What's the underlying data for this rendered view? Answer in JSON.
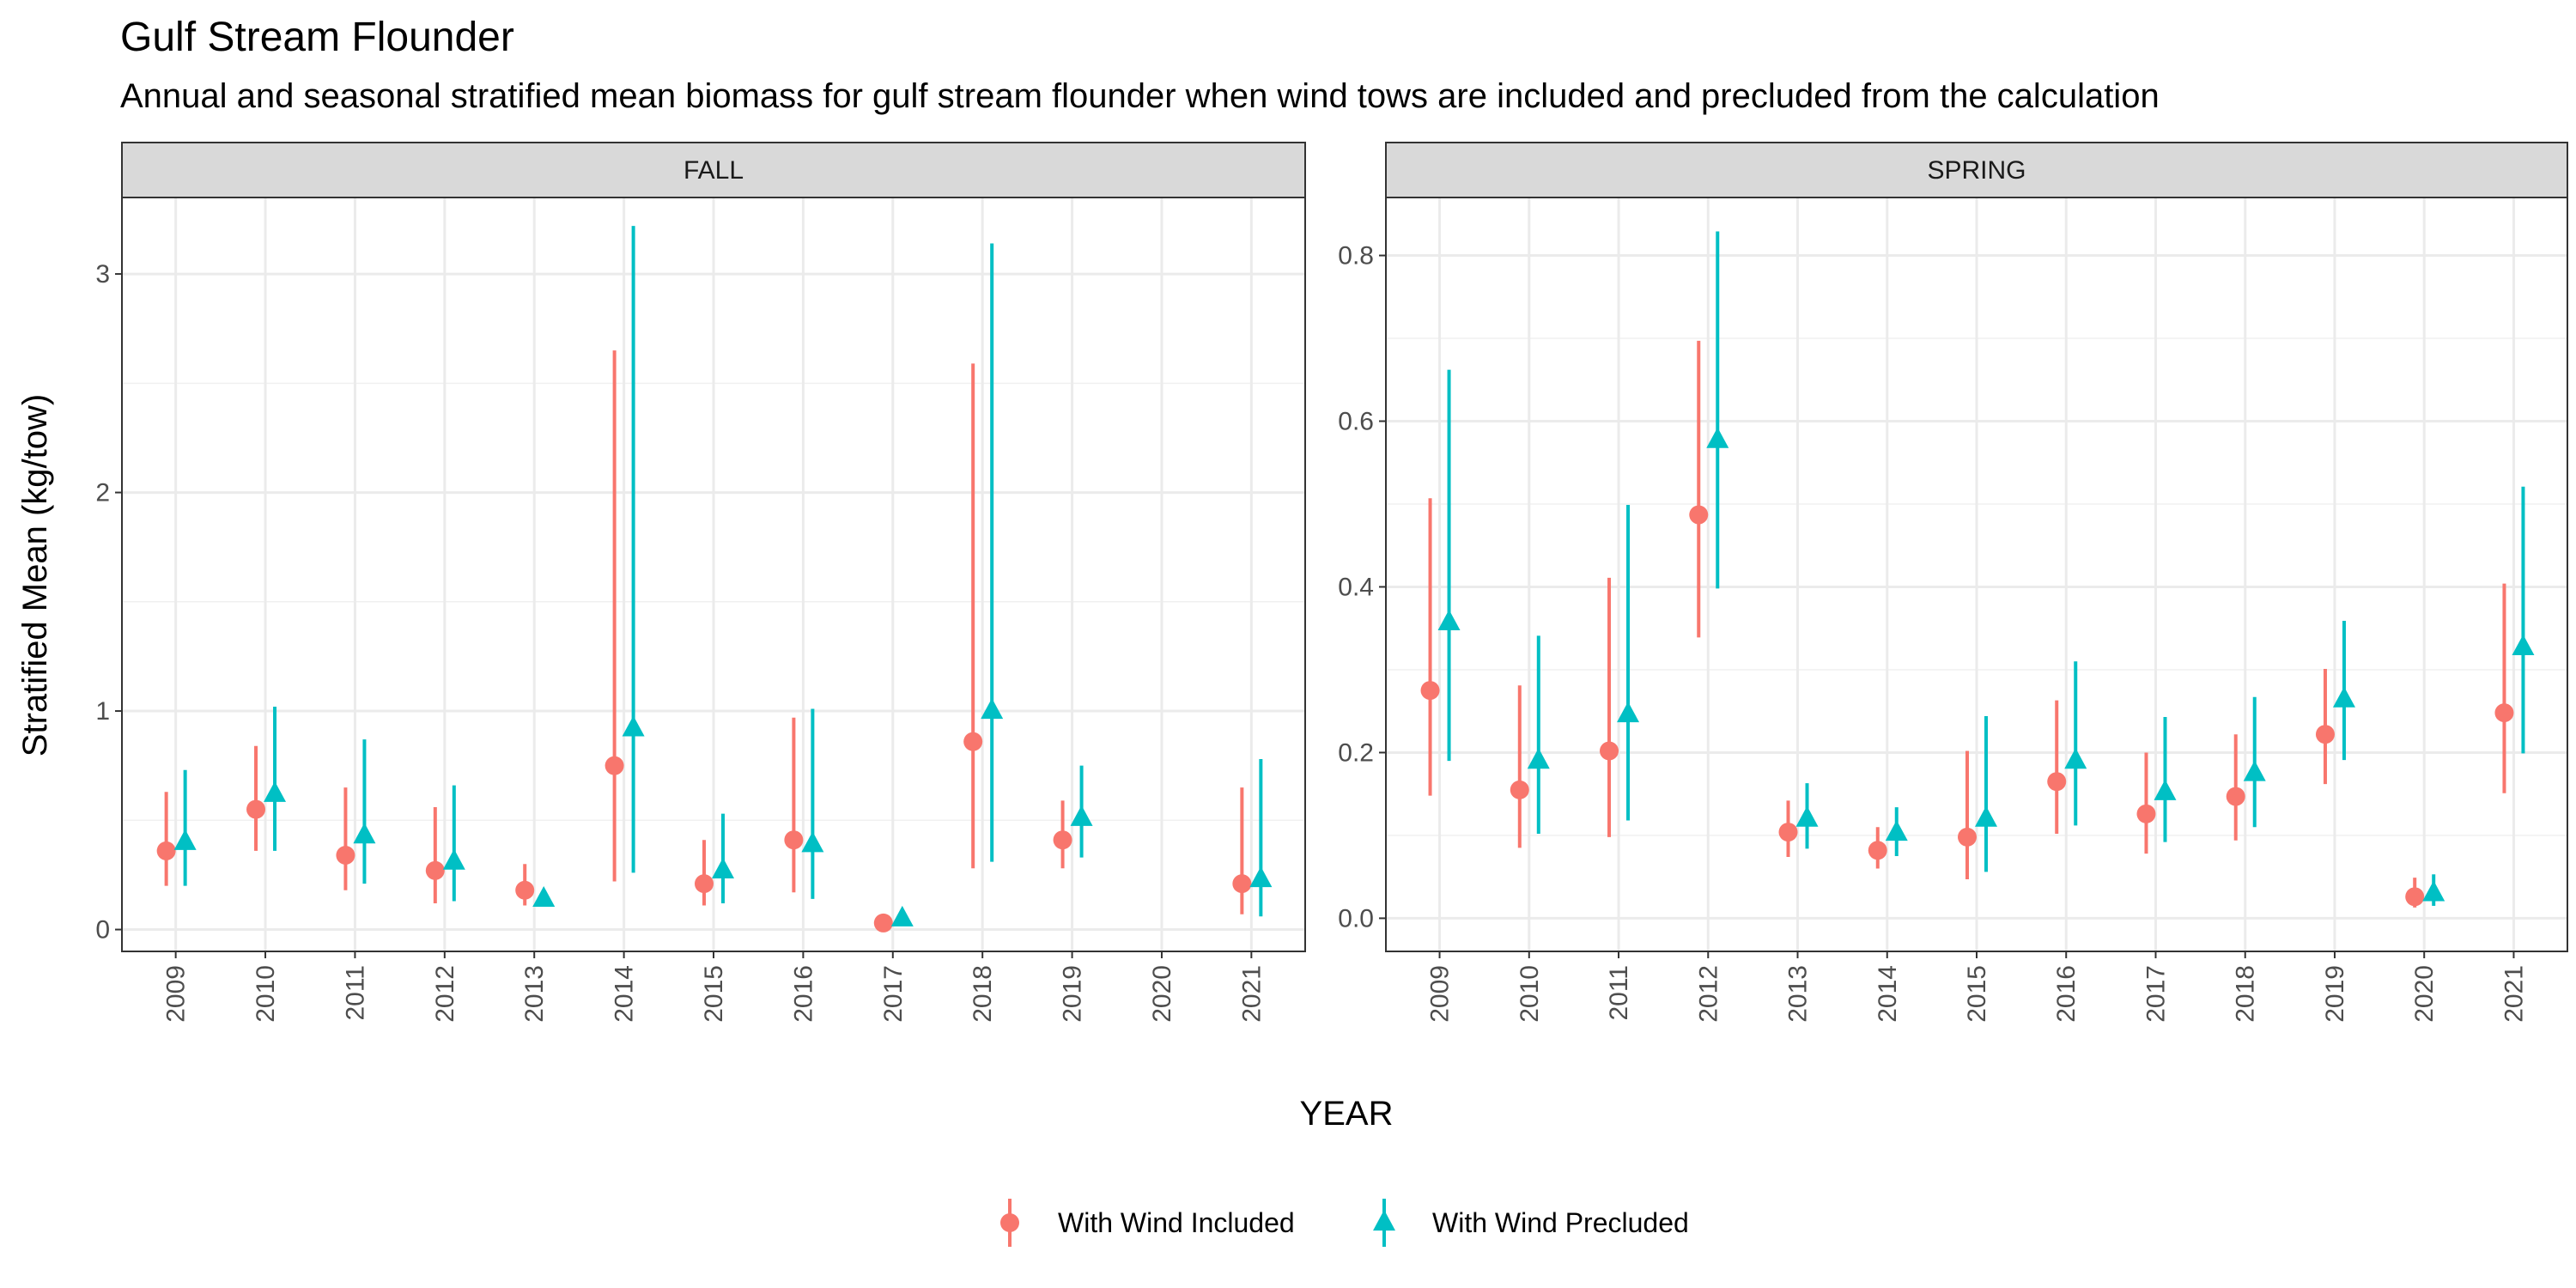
{
  "chart_data": {
    "type": "scatter",
    "title": "Gulf Stream Flounder",
    "subtitle": "Annual and seasonal stratified mean biomass for gulf stream flounder when wind tows are included and precluded from the calculation",
    "xlabel": "YEAR",
    "ylabel": "Stratified Mean (kg/tow)",
    "grid": true,
    "legend_position": "bottom",
    "series_styles": [
      {
        "name": "With Wind Included",
        "color": "#F8766D",
        "shape": "circle"
      },
      {
        "name": "With Wind Precluded",
        "color": "#00BFC4",
        "shape": "triangle"
      }
    ],
    "legend": [
      "With Wind Included",
      "With Wind Precluded"
    ],
    "panels": [
      {
        "facet": "FALL",
        "years": [
          "2009",
          "2010",
          "2011",
          "2012",
          "2013",
          "2014",
          "2015",
          "2016",
          "2017",
          "2018",
          "2019",
          "2020",
          "2021"
        ],
        "ylim": [
          -0.1,
          3.35
        ],
        "yticks": [
          0,
          1,
          2,
          3
        ],
        "series": [
          {
            "name": "With Wind Included",
            "points": [
              {
                "x": "2009",
                "y": 0.36,
                "lo": 0.2,
                "hi": 0.63
              },
              {
                "x": "2010",
                "y": 0.55,
                "lo": 0.36,
                "hi": 0.84
              },
              {
                "x": "2011",
                "y": 0.34,
                "lo": 0.18,
                "hi": 0.65
              },
              {
                "x": "2012",
                "y": 0.27,
                "lo": 0.12,
                "hi": 0.56
              },
              {
                "x": "2013",
                "y": 0.18,
                "lo": 0.11,
                "hi": 0.3
              },
              {
                "x": "2014",
                "y": 0.75,
                "lo": 0.22,
                "hi": 2.65
              },
              {
                "x": "2015",
                "y": 0.21,
                "lo": 0.11,
                "hi": 0.41
              },
              {
                "x": "2016",
                "y": 0.41,
                "lo": 0.17,
                "hi": 0.97
              },
              {
                "x": "2017",
                "y": 0.03,
                "lo": 0.02,
                "hi": 0.05
              },
              {
                "x": "2018",
                "y": 0.86,
                "lo": 0.28,
                "hi": 2.59
              },
              {
                "x": "2019",
                "y": 0.41,
                "lo": 0.28,
                "hi": 0.59
              },
              {
                "x": "2021",
                "y": 0.21,
                "lo": 0.07,
                "hi": 0.65
              }
            ]
          },
          {
            "name": "With Wind Precluded",
            "points": [
              {
                "x": "2009",
                "y": 0.4,
                "lo": 0.2,
                "hi": 0.73
              },
              {
                "x": "2010",
                "y": 0.62,
                "lo": 0.36,
                "hi": 1.02
              },
              {
                "x": "2011",
                "y": 0.43,
                "lo": 0.21,
                "hi": 0.87
              },
              {
                "x": "2012",
                "y": 0.31,
                "lo": 0.13,
                "hi": 0.66
              },
              {
                "x": "2013",
                "y": 0.14,
                "lo": 0.12,
                "hi": 0.16
              },
              {
                "x": "2014",
                "y": 0.92,
                "lo": 0.26,
                "hi": 3.22
              },
              {
                "x": "2015",
                "y": 0.27,
                "lo": 0.12,
                "hi": 0.53
              },
              {
                "x": "2016",
                "y": 0.39,
                "lo": 0.14,
                "hi": 1.01
              },
              {
                "x": "2017",
                "y": 0.05,
                "lo": 0.03,
                "hi": 0.07
              },
              {
                "x": "2018",
                "y": 1.0,
                "lo": 0.31,
                "hi": 3.14
              },
              {
                "x": "2019",
                "y": 0.51,
                "lo": 0.33,
                "hi": 0.75
              },
              {
                "x": "2021",
                "y": 0.23,
                "lo": 0.06,
                "hi": 0.78
              }
            ]
          }
        ]
      },
      {
        "facet": "SPRING",
        "years": [
          "2009",
          "2010",
          "2011",
          "2012",
          "2013",
          "2014",
          "2015",
          "2016",
          "2017",
          "2018",
          "2019",
          "2020",
          "2021"
        ],
        "ylim": [
          -0.04,
          0.87
        ],
        "yticks": [
          0.0,
          0.2,
          0.4,
          0.6,
          0.8
        ],
        "series": [
          {
            "name": "With Wind Included",
            "points": [
              {
                "x": "2009",
                "y": 0.275,
                "lo": 0.148,
                "hi": 0.507
              },
              {
                "x": "2010",
                "y": 0.155,
                "lo": 0.085,
                "hi": 0.281
              },
              {
                "x": "2011",
                "y": 0.202,
                "lo": 0.098,
                "hi": 0.411
              },
              {
                "x": "2012",
                "y": 0.487,
                "lo": 0.339,
                "hi": 0.697
              },
              {
                "x": "2013",
                "y": 0.104,
                "lo": 0.074,
                "hi": 0.142
              },
              {
                "x": "2014",
                "y": 0.082,
                "lo": 0.06,
                "hi": 0.11
              },
              {
                "x": "2015",
                "y": 0.098,
                "lo": 0.047,
                "hi": 0.202
              },
              {
                "x": "2016",
                "y": 0.165,
                "lo": 0.102,
                "hi": 0.263
              },
              {
                "x": "2017",
                "y": 0.126,
                "lo": 0.078,
                "hi": 0.2
              },
              {
                "x": "2018",
                "y": 0.147,
                "lo": 0.094,
                "hi": 0.222
              },
              {
                "x": "2019",
                "y": 0.222,
                "lo": 0.162,
                "hi": 0.301
              },
              {
                "x": "2020",
                "y": 0.026,
                "lo": 0.013,
                "hi": 0.049
              },
              {
                "x": "2021",
                "y": 0.248,
                "lo": 0.151,
                "hi": 0.404
              }
            ]
          },
          {
            "name": "With Wind Precluded",
            "points": [
              {
                "x": "2009",
                "y": 0.357,
                "lo": 0.19,
                "hi": 0.662
              },
              {
                "x": "2010",
                "y": 0.19,
                "lo": 0.102,
                "hi": 0.341
              },
              {
                "x": "2011",
                "y": 0.246,
                "lo": 0.118,
                "hi": 0.499
              },
              {
                "x": "2012",
                "y": 0.577,
                "lo": 0.398,
                "hi": 0.829
              },
              {
                "x": "2013",
                "y": 0.12,
                "lo": 0.084,
                "hi": 0.163
              },
              {
                "x": "2014",
                "y": 0.103,
                "lo": 0.075,
                "hi": 0.134
              },
              {
                "x": "2015",
                "y": 0.12,
                "lo": 0.056,
                "hi": 0.244
              },
              {
                "x": "2016",
                "y": 0.19,
                "lo": 0.112,
                "hi": 0.31
              },
              {
                "x": "2017",
                "y": 0.152,
                "lo": 0.092,
                "hi": 0.243
              },
              {
                "x": "2018",
                "y": 0.175,
                "lo": 0.11,
                "hi": 0.267
              },
              {
                "x": "2019",
                "y": 0.264,
                "lo": 0.191,
                "hi": 0.359
              },
              {
                "x": "2020",
                "y": 0.03,
                "lo": 0.015,
                "hi": 0.053
              },
              {
                "x": "2021",
                "y": 0.327,
                "lo": 0.199,
                "hi": 0.521
              }
            ]
          }
        ]
      }
    ]
  }
}
